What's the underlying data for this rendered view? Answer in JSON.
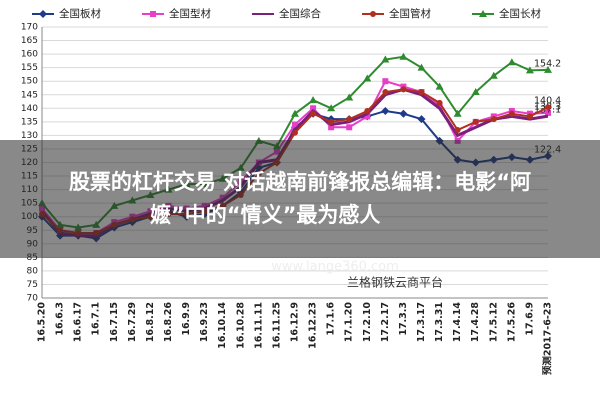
{
  "chart_data": {
    "type": "line",
    "categories": [
      "16.5.20",
      "16.6.3",
      "16.6.17",
      "16.7.1",
      "16.7.15",
      "16.7.29",
      "16.8.12",
      "16.8.26",
      "16.9.9",
      "16.9.23",
      "16.10.14",
      "16.10.28",
      "16.11.11",
      "16.11.25",
      "16.12.9",
      "16.12.23",
      "17.1.6",
      "17.1.20",
      "17.2.10",
      "17.2.17",
      "17.3.3",
      "17.3.17",
      "17.3.31",
      "17.4.14",
      "17.4.28",
      "17.5.12",
      "17.5.26",
      "17.6.9",
      "预测2017-6-23"
    ],
    "series": [
      {
        "name": "全国板材",
        "color": "#1f3a8a",
        "marker": "diamond",
        "values": [
          100,
          93,
          93,
          92,
          96,
          98,
          100,
          102,
          100,
          101,
          104,
          109,
          118,
          120,
          133,
          138,
          136,
          136,
          137,
          139,
          138,
          136,
          128,
          121,
          120,
          121,
          122,
          121,
          122.4
        ]
      },
      {
        "name": "全国型材",
        "color": "#e83ec9",
        "marker": "square",
        "values": [
          103,
          95,
          94,
          94,
          98,
          100,
          102,
          104,
          103,
          104,
          107,
          113,
          120,
          124,
          134,
          140,
          133,
          133,
          137,
          150,
          148,
          146,
          141,
          128,
          135,
          137,
          139,
          138,
          138.3
        ]
      },
      {
        "name": "全国综合",
        "color": "#7a1f7a",
        "marker": "none",
        "values": [
          102,
          94,
          93,
          93,
          97,
          99,
          101,
          103,
          102,
          103,
          106,
          111,
          120,
          121,
          132,
          139,
          134,
          135,
          138,
          145,
          147,
          145,
          140,
          130,
          133,
          136,
          137,
          136,
          137.1
        ]
      },
      {
        "name": "全国管材",
        "color": "#b03020",
        "marker": "circle",
        "values": [
          101,
          95,
          94,
          94,
          97,
          99,
          100,
          101,
          101,
          102,
          104,
          108,
          116,
          120,
          131,
          138,
          135,
          136,
          139,
          146,
          147,
          146,
          142,
          132,
          135,
          136,
          138,
          137,
          140.4
        ]
      },
      {
        "name": "全国长材",
        "color": "#2e8b2e",
        "marker": "triangle",
        "values": [
          105,
          97,
          96,
          97,
          104,
          106,
          108,
          110,
          112,
          112,
          114,
          118,
          128,
          126,
          138,
          143,
          140,
          144,
          151,
          158,
          159,
          155,
          148,
          138,
          146,
          152,
          157,
          154,
          154.2
        ]
      }
    ],
    "ylim": [
      70,
      170
    ],
    "yticks": [
      70,
      75,
      80,
      85,
      90,
      95,
      100,
      105,
      110,
      115,
      120,
      125,
      130,
      135,
      140,
      145,
      150,
      155,
      160,
      165,
      170
    ],
    "grid": true
  },
  "banner": {
    "lines": [
      "股票的杠杆交易 对话越南前锋报总编辑：电影“阿",
      "嬷”中的“情义”最为感人"
    ],
    "watermark": "www.lange360.com",
    "platform": "兰格钢铁云商平台"
  }
}
